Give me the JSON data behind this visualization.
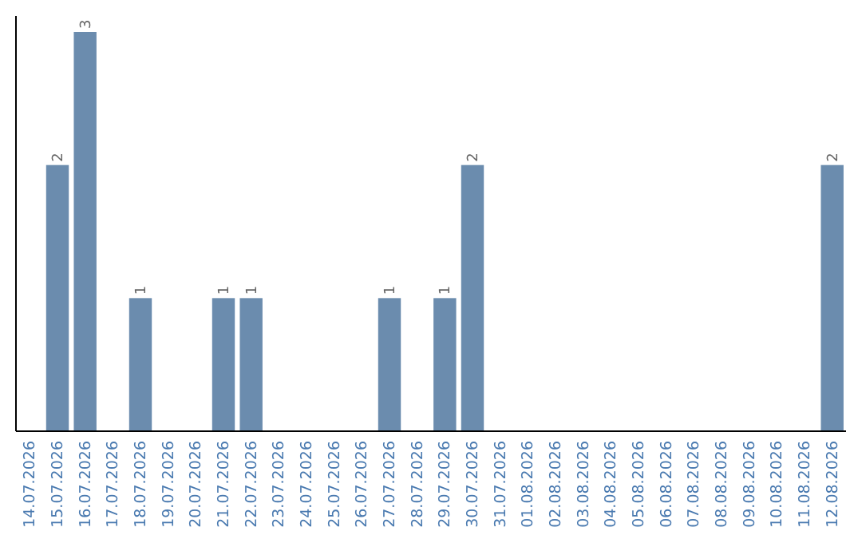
{
  "chart_data": {
    "type": "bar",
    "categories": [
      "14.07.2026",
      "15.07.2026",
      "16.07.2026",
      "17.07.2026",
      "18.07.2026",
      "19.07.2026",
      "20.07.2026",
      "21.07.2026",
      "22.07.2026",
      "23.07.2026",
      "24.07.2026",
      "25.07.2026",
      "26.07.2026",
      "27.07.2026",
      "28.07.2026",
      "29.07.2026",
      "30.07.2026",
      "31.07.2026",
      "01.08.2026",
      "02.08.2026",
      "03.08.2026",
      "04.08.2026",
      "05.08.2026",
      "06.08.2026",
      "07.08.2026",
      "08.08.2026",
      "09.08.2026",
      "10.08.2026",
      "11.08.2026",
      "12.08.2026"
    ],
    "values": [
      0,
      2,
      3,
      0,
      1,
      0,
      0,
      1,
      1,
      0,
      0,
      0,
      0,
      1,
      0,
      1,
      2,
      0,
      0,
      0,
      0,
      0,
      0,
      0,
      0,
      0,
      0,
      0,
      0,
      2
    ],
    "value_labels": [
      null,
      "2",
      "3",
      null,
      "1",
      null,
      null,
      "1",
      "1",
      null,
      null,
      null,
      null,
      "1",
      null,
      "1",
      "2",
      null,
      null,
      null,
      null,
      null,
      null,
      null,
      null,
      null,
      null,
      null,
      null,
      "2"
    ],
    "color": "#6b8cae",
    "ylim": [
      0,
      3
    ],
    "tick_labels": "x"
  }
}
